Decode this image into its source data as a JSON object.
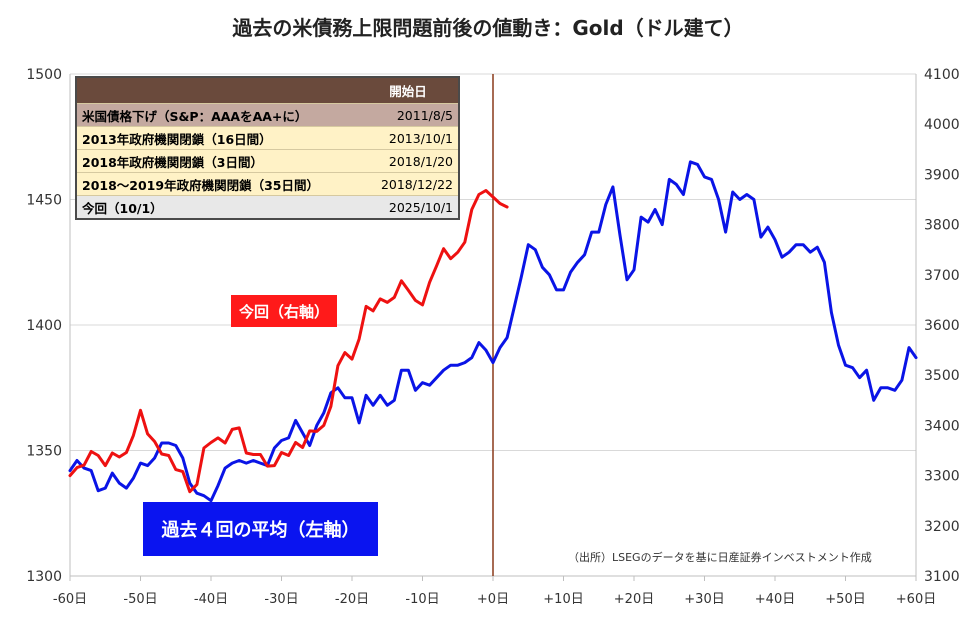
{
  "title": "過去の米債務上限問題前後の値動き：Gold（ドル建て）",
  "chart_data": {
    "type": "line",
    "xlabel": "",
    "ylabel_left": "",
    "ylabel_right": "",
    "x_ticks": [
      "-60日",
      "-50日",
      "-40日",
      "-30日",
      "-20日",
      "-10日",
      "+0日",
      "+10日",
      "+20日",
      "+30日",
      "+40日",
      "+50日",
      "+60日"
    ],
    "xlim": [
      -60,
      60
    ],
    "y_left": {
      "lim": [
        1300,
        1500
      ],
      "ticks": [
        1300,
        1350,
        1400,
        1450,
        1500
      ]
    },
    "y_right": {
      "lim": [
        3100,
        4100
      ],
      "ticks": [
        3100,
        3200,
        3300,
        3400,
        3500,
        3600,
        3700,
        3800,
        3900,
        4000,
        4100
      ]
    },
    "event_line_x": 0,
    "grid": true,
    "series": [
      {
        "name": "過去４回の平均（左軸）",
        "axis": "left",
        "color": "#0a14e6",
        "x": [
          -60,
          -59,
          -58,
          -57,
          -56,
          -55,
          -54,
          -53,
          -52,
          -51,
          -50,
          -49,
          -48,
          -47,
          -46,
          -45,
          -44,
          -43,
          -42,
          -41,
          -40,
          -39,
          -38,
          -37,
          -36,
          -35,
          -34,
          -33,
          -32,
          -31,
          -30,
          -29,
          -28,
          -27,
          -26,
          -25,
          -24,
          -23,
          -22,
          -21,
          -20,
          -19,
          -18,
          -17,
          -16,
          -15,
          -14,
          -13,
          -12,
          -11,
          -10,
          -9,
          -8,
          -7,
          -6,
          -5,
          -4,
          -3,
          -2,
          -1,
          0,
          1,
          2,
          3,
          4,
          5,
          6,
          7,
          8,
          9,
          10,
          11,
          12,
          13,
          14,
          15,
          16,
          17,
          18,
          19,
          20,
          21,
          22,
          23,
          24,
          25,
          26,
          27,
          28,
          29,
          30,
          31,
          32,
          33,
          34,
          35,
          36,
          37,
          38,
          39,
          40,
          41,
          42,
          43,
          44,
          45,
          46,
          47,
          48,
          49,
          50,
          51,
          52,
          53,
          54,
          55,
          56,
          57,
          58,
          59,
          60
        ],
        "values": [
          1342,
          1346,
          1343,
          1342,
          1334,
          1335,
          1341,
          1337,
          1335,
          1339,
          1345,
          1344,
          1347,
          1353,
          1353,
          1352,
          1347,
          1337,
          1333,
          1332,
          1330,
          1336,
          1343,
          1345,
          1346,
          1345,
          1346,
          1345,
          1344,
          1351,
          1354,
          1355,
          1362,
          1357,
          1352,
          1360,
          1365,
          1373,
          1375,
          1371,
          1371,
          1361,
          1372,
          1368,
          1372,
          1368,
          1370,
          1382,
          1382,
          1374,
          1377,
          1376,
          1379,
          1382,
          1384,
          1384,
          1385,
          1387,
          1393,
          1390,
          1385,
          1391,
          1395,
          1407,
          1419,
          1432,
          1430,
          1423,
          1420,
          1414,
          1414,
          1421,
          1425,
          1428,
          1437,
          1437,
          1448,
          1455,
          1436,
          1418,
          1422,
          1443,
          1441,
          1446,
          1440,
          1458,
          1456,
          1452,
          1465,
          1464,
          1459,
          1458,
          1450,
          1437,
          1453,
          1450,
          1452,
          1450,
          1435,
          1439,
          1434,
          1427,
          1429,
          1432,
          1432,
          1429,
          1431,
          1425,
          1405,
          1392,
          1384,
          1383,
          1379,
          1382,
          1370,
          1375,
          1375,
          1374,
          1378,
          1391,
          1387
        ]
      },
      {
        "name": "今回（右軸）",
        "axis": "right",
        "color": "#ee1111",
        "x": [
          -60,
          -59,
          -58,
          -57,
          -56,
          -55,
          -54,
          -53,
          -52,
          -51,
          -50,
          -49,
          -48,
          -47,
          -46,
          -45,
          -44,
          -43,
          -42,
          -41,
          -40,
          -39,
          -38,
          -37,
          -36,
          -35,
          -34,
          -33,
          -32,
          -31,
          -30,
          -29,
          -28,
          -27,
          -26,
          -25,
          -24,
          -23,
          -22,
          -21,
          -20,
          -19,
          -18,
          -17,
          -16,
          -15,
          -14,
          -13,
          -12,
          -11,
          -10,
          -9,
          -8,
          -7,
          -6,
          -5,
          -4,
          -3,
          -2,
          -1,
          0,
          1,
          2
        ],
        "values": [
          3300,
          3316,
          3321,
          3348,
          3340,
          3320,
          3345,
          3337,
          3346,
          3380,
          3430,
          3383,
          3368,
          3343,
          3340,
          3312,
          3308,
          3268,
          3282,
          3355,
          3366,
          3375,
          3365,
          3392,
          3395,
          3345,
          3342,
          3342,
          3319,
          3320,
          3346,
          3340,
          3366,
          3356,
          3389,
          3388,
          3400,
          3438,
          3519,
          3545,
          3532,
          3572,
          3637,
          3628,
          3652,
          3645,
          3655,
          3688,
          3669,
          3649,
          3640,
          3685,
          3718,
          3752,
          3732,
          3745,
          3765,
          3830,
          3860,
          3868,
          3855,
          3842,
          3835
        ]
      }
    ]
  },
  "legend_table": {
    "header": "開始日",
    "rows": [
      {
        "label": "米国債格下げ（S&P：AAAをAA+に）",
        "date": "2011/8/5"
      },
      {
        "label": "2013年政府機関閉鎖（16日間）",
        "date": "2013/10/1"
      },
      {
        "label": "2018年政府機関閉鎖（3日間）",
        "date": "2018/1/20"
      },
      {
        "label": "2018～2019年政府機関閉鎖（35日間）",
        "date": "2018/12/22"
      },
      {
        "label": "今回（10/1）",
        "date": "2025/10/1"
      }
    ]
  },
  "labels": {
    "current": "今回（右軸）",
    "average": "過去４回の平均（左軸）",
    "source": "（出所）LSEGのデータを基に日産証券インベストメント作成"
  }
}
